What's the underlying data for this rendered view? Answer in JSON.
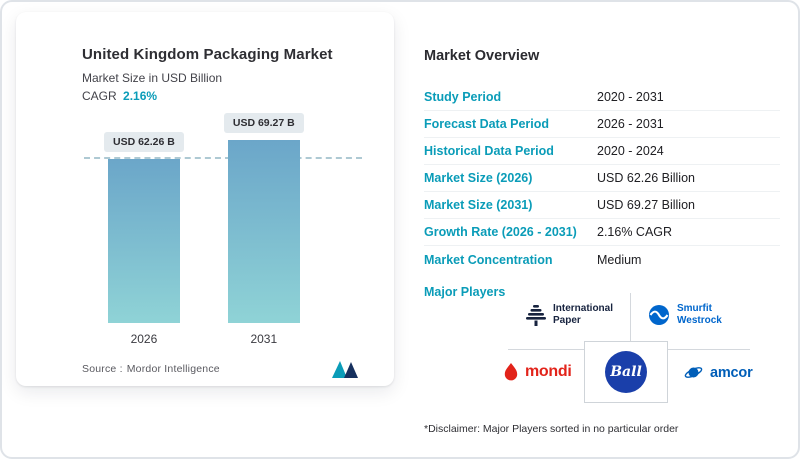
{
  "theme": {
    "accent": "#0a9cb8",
    "navy": "#16305e",
    "bar_top": "#6ba6c9",
    "bar_bottom": "#8fd3d6",
    "dash": "#aec9d3",
    "tag_bg": "#e4eaee",
    "ip": "#17233f",
    "smurfit": "#0066cc",
    "mondi": "#e2231a",
    "ball": "#1a3faa",
    "amcor": "#005eb8"
  },
  "left_card": {
    "title": "United Kingdom Packaging Market",
    "subtitle": "Market Size in USD Billion",
    "cagr_label": "CAGR",
    "cagr_value": "2.16%",
    "source_label": "Source :",
    "source_value": "Mordor Intelligence"
  },
  "chart_data": {
    "type": "bar",
    "title": "United Kingdom Packaging Market",
    "ylabel": "Market Size in USD Billion",
    "categories": [
      "2026",
      "2031"
    ],
    "values": [
      62.26,
      69.27
    ],
    "bar_labels": [
      "USD 62.26 B",
      "USD 69.27 B"
    ],
    "ylim": [
      0,
      75
    ],
    "reference_line": 62.26,
    "grid": false,
    "legend": false
  },
  "overview": {
    "heading": "Market Overview",
    "rows": [
      {
        "label": "Study Period",
        "value": "2020 - 2031"
      },
      {
        "label": "Forecast Data Period",
        "value": "2026 - 2031"
      },
      {
        "label": "Historical Data Period",
        "value": "2020 - 2024"
      },
      {
        "label": "Market Size (2026)",
        "value": "USD 62.26 Billion"
      },
      {
        "label": "Market Size (2031)",
        "value": "USD 69.27 Billion"
      },
      {
        "label": "Growth Rate (2026 - 2031)",
        "value": "2.16% CAGR"
      },
      {
        "label": "Market Concentration",
        "value": "Medium"
      }
    ],
    "major_players_label": "Major Players",
    "players": [
      "International Paper",
      "Smurfit Westrock",
      "mondi",
      "Ball",
      "amcor"
    ],
    "disclaimer": "*Disclaimer: Major Players sorted in no particular order"
  }
}
